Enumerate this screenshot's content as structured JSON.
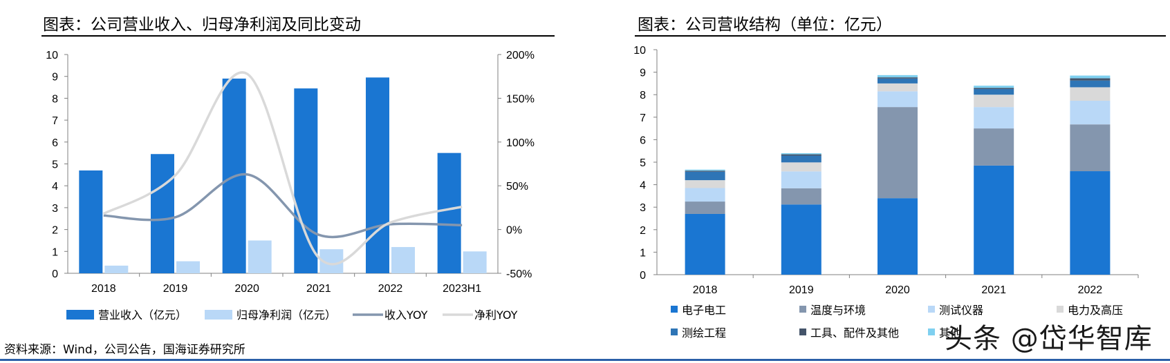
{
  "source_text": "资料来源：Wind，公司公告，国海证券研究所",
  "watermark": "头条 @岱华智库",
  "chart_data": [
    {
      "type": "bar",
      "title": "图表：公司营业收入、归母净利润及同比变动",
      "categories": [
        "2018",
        "2019",
        "2020",
        "2021",
        "2022",
        "2023H1"
      ],
      "ylim": [
        0,
        10
      ],
      "y_ticks": [
        "0",
        "1",
        "2",
        "3",
        "4",
        "5",
        "6",
        "7",
        "8",
        "9",
        "10"
      ],
      "y2lim": [
        -50,
        200
      ],
      "y2_ticks": [
        "-50%",
        "0%",
        "50%",
        "100%",
        "150%",
        "200%"
      ],
      "series": [
        {
          "name": "营业收入（亿元）",
          "kind": "bar",
          "axis": "left",
          "color": "#1a76d2",
          "values": [
            4.7,
            5.45,
            8.9,
            8.45,
            8.95,
            5.5
          ]
        },
        {
          "name": "归母净利润（亿元）",
          "kind": "bar",
          "axis": "left",
          "color": "#b9d8f7",
          "values": [
            0.35,
            0.55,
            1.5,
            1.1,
            1.2,
            1.0
          ]
        },
        {
          "name": "收入YOY",
          "kind": "line",
          "axis": "right",
          "color": "#8496ae",
          "values": [
            16,
            14,
            63,
            -6,
            6,
            5
          ]
        },
        {
          "name": "净利YOY",
          "kind": "line",
          "axis": "right",
          "color": "#d9d9d9",
          "values": [
            18,
            62,
            178,
            -32,
            8,
            26
          ]
        }
      ]
    },
    {
      "type": "bar",
      "stacked": true,
      "title": "图表：公司营收结构（单位：亿元）",
      "categories": [
        "2018",
        "2019",
        "2020",
        "2021",
        "2022"
      ],
      "ylim": [
        0,
        10
      ],
      "y_ticks": [
        "0",
        "1",
        "2",
        "3",
        "4",
        "5",
        "6",
        "7",
        "8",
        "9",
        "10"
      ],
      "series": [
        {
          "name": "电子电工",
          "color": "#1a76d2",
          "values": [
            2.7,
            3.12,
            3.4,
            4.85,
            4.6
          ]
        },
        {
          "name": "温度与环境",
          "color": "#8496ae",
          "values": [
            0.55,
            0.72,
            4.05,
            1.65,
            2.08
          ]
        },
        {
          "name": "测试仪器",
          "color": "#b9d8f7",
          "values": [
            0.6,
            0.75,
            0.7,
            0.95,
            1.05
          ]
        },
        {
          "name": "电力及高压",
          "color": "#d9d9d9",
          "values": [
            0.35,
            0.4,
            0.35,
            0.55,
            0.6
          ]
        },
        {
          "name": "测绘工程",
          "color": "#2e75b6",
          "values": [
            0.38,
            0.3,
            0.22,
            0.25,
            0.3
          ]
        },
        {
          "name": "工具、配件及其他",
          "color": "#44546a",
          "values": [
            0.04,
            0.06,
            0.05,
            0.05,
            0.1
          ]
        },
        {
          "name": "其他",
          "color": "#7fd0f0",
          "values": [
            0.05,
            0.05,
            0.1,
            0.1,
            0.12
          ]
        }
      ]
    }
  ]
}
